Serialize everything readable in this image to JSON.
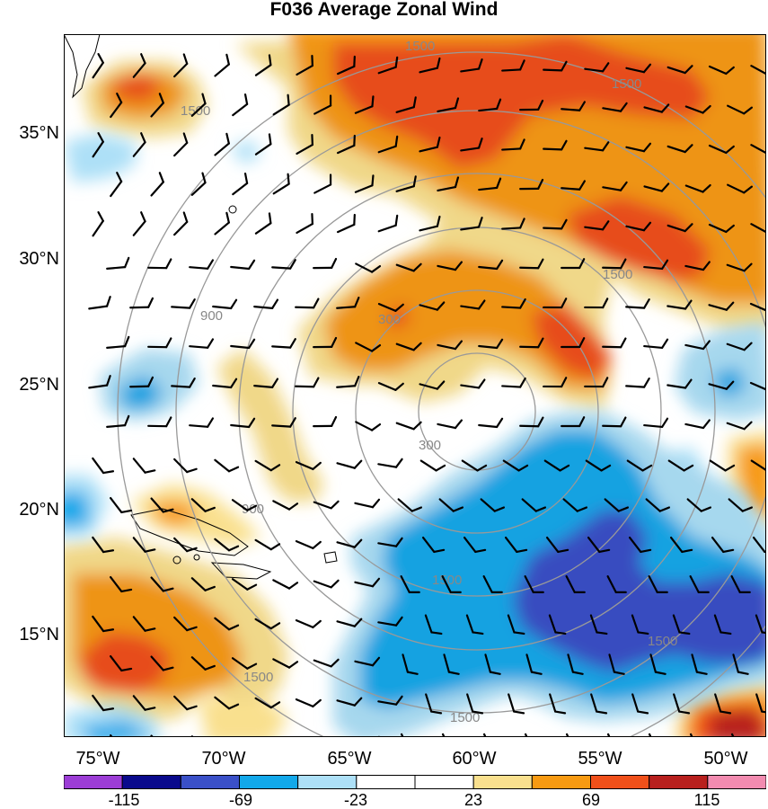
{
  "title": "F036 Average Zonal Wind",
  "lat_labels": [
    "35°N",
    "30°N",
    "25°N",
    "20°N",
    "15°N"
  ],
  "lon_labels": [
    "75°W",
    "70°W",
    "65°W",
    "60°W",
    "55°W",
    "50°W"
  ],
  "range_ring_labels": [
    "300",
    "900",
    "1500"
  ],
  "colorbar": {
    "labels": [
      "-115",
      "-69",
      "-23",
      "23",
      "69",
      "115"
    ],
    "colors": [
      "#9c3dd6",
      "#0a0a8c",
      "#3a50c8",
      "#12a8ea",
      "#ade0f7",
      "#ffffff",
      "#ffffff",
      "#f9e08e",
      "#f79a12",
      "#f0501a",
      "#b8201e",
      "#f28bb0"
    ]
  },
  "colors": {
    "dark_blue": "#3a50c8",
    "medium_blue": "#12a8ea",
    "light_blue": "#ade0f7",
    "light_yellow": "#f9e08e",
    "orange": "#f79a12",
    "red_orange": "#f0501a",
    "dark_red": "#b8201e",
    "ring": "#999999"
  }
}
